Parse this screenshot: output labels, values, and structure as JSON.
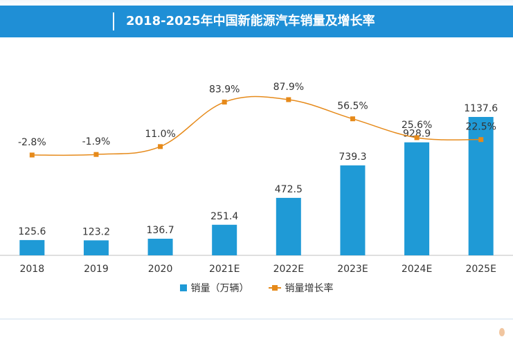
{
  "header": {
    "title": "2018-2025年中国新能源汽车销量及增长率"
  },
  "colors": {
    "header_bg": "#1f8fd6",
    "bar": "#1f9ad6",
    "line": "#e68a1a",
    "axis": "#bfbfbf",
    "text": "#333333"
  },
  "chart_data": {
    "type": "bar",
    "categories": [
      "2018",
      "2019",
      "2020",
      "2021E",
      "2022E",
      "2023E",
      "2024E",
      "2025E"
    ],
    "series": [
      {
        "name": "销量（万辆）",
        "type": "bar",
        "values": [
          125.6,
          123.2,
          136.7,
          251.4,
          472.5,
          739.3,
          928.9,
          1137.6
        ],
        "labels": [
          "125.6",
          "123.2",
          "136.7",
          "251.4",
          "472.5",
          "739.3",
          "928.9",
          "1137.6"
        ]
      },
      {
        "name": "销量增长率",
        "type": "line",
        "values": [
          -2.8,
          -1.9,
          11.0,
          83.9,
          87.9,
          56.5,
          25.6,
          22.5
        ],
        "labels": [
          "-2.8%",
          "-1.9%",
          "11.0%",
          "83.9%",
          "87.9%",
          "56.5%",
          "25.6%",
          "22.5%"
        ]
      }
    ],
    "legend_position": "bottom",
    "grid": false
  },
  "legend": {
    "bar_label": "销量（万辆）",
    "line_label": "销量增长率"
  }
}
